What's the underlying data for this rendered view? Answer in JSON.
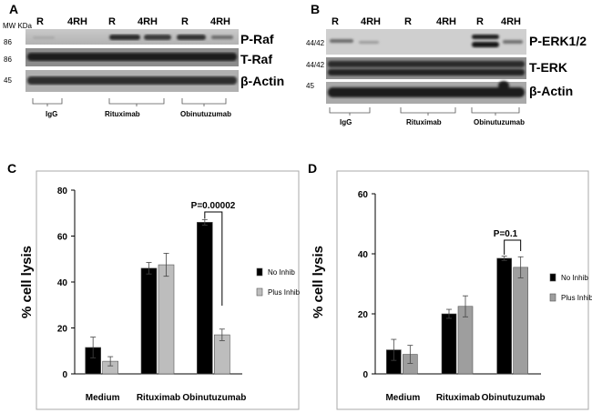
{
  "panel_a": {
    "letter": "A",
    "lanes": [
      "R",
      "4RH",
      "R",
      "4RH",
      "R",
      "4RH"
    ],
    "mw_header": "MW KDa",
    "rows": [
      {
        "mw": "86",
        "name": "P-Raf"
      },
      {
        "mw": "86",
        "name": "T-Raf"
      },
      {
        "mw": "45",
        "name": "β-Actin"
      }
    ],
    "groups": [
      "IgG",
      "Rituximab",
      "Obinutuzumab"
    ]
  },
  "panel_b": {
    "letter": "B",
    "lanes": [
      "R",
      "4RH",
      "R",
      "4RH",
      "R",
      "4RH"
    ],
    "rows": [
      {
        "mw": "44/42",
        "name": "P-ERK1/2"
      },
      {
        "mw": "44/42",
        "name": "T-ERK"
      },
      {
        "mw": "45",
        "name": "β-Actin"
      }
    ],
    "groups": [
      "IgG",
      "Rituximab",
      "Obinutuzumab"
    ]
  },
  "chart_data": [
    {
      "panel": "C",
      "type": "bar",
      "ylabel": "% cell lysis",
      "ylim": [
        0,
        80
      ],
      "yticks": [
        "0",
        "20",
        "40",
        "60",
        "80"
      ],
      "categories": [
        "Medium",
        "Rituximab",
        "Obinutuzumab"
      ],
      "series": [
        {
          "name": "No Inhib",
          "values": [
            11.5,
            46,
            66
          ],
          "errors": [
            4.5,
            2.5,
            1.2
          ],
          "color": "#000000"
        },
        {
          "name": "Plus Inhib",
          "values": [
            5.5,
            47.5,
            17
          ],
          "errors": [
            2,
            5,
            2.5
          ],
          "color": "#bdbdbd"
        }
      ],
      "annotation": "P=0.00002",
      "legend": "right"
    },
    {
      "panel": "D",
      "type": "bar",
      "ylabel": "% cell lysis",
      "ylim": [
        0,
        60
      ],
      "yticks": [
        "0",
        "20",
        "40",
        "60"
      ],
      "categories": [
        "Medium",
        "Rituximab",
        "Obinutuzumab"
      ],
      "series": [
        {
          "name": "No Inhib",
          "values": [
            8,
            20,
            38.5
          ],
          "errors": [
            3.5,
            1.5,
            0.7
          ],
          "color": "#000000"
        },
        {
          "name": "Plus Inhib",
          "values": [
            6.5,
            22.5,
            35.5
          ],
          "errors": [
            3,
            3.5,
            3.5
          ],
          "color": "#9e9e9e"
        }
      ],
      "annotation": "P=0.1",
      "legend": "right"
    }
  ]
}
